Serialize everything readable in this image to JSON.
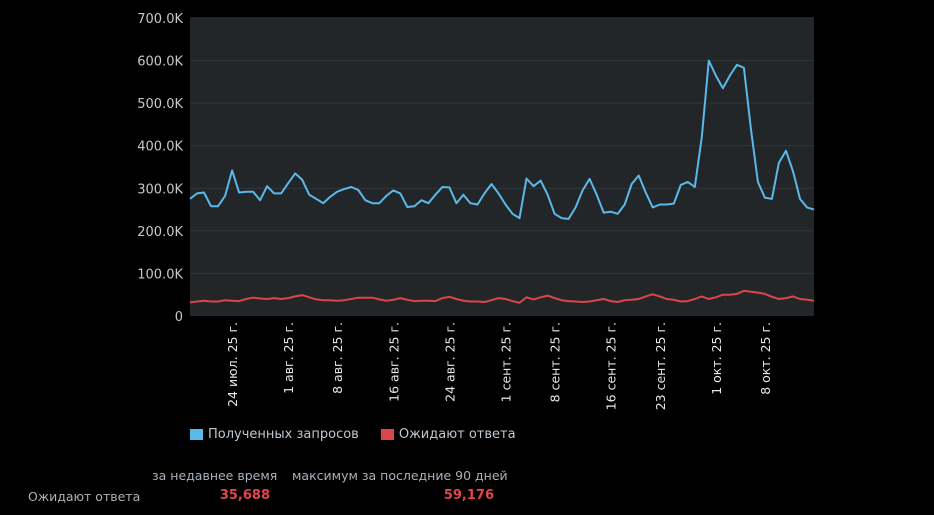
{
  "chart_data": {
    "type": "line",
    "title": "",
    "xlabel": "",
    "ylabel": "",
    "ylim": [
      0,
      700000
    ],
    "yticks": [
      "0",
      "100.0K",
      "200.0K",
      "300.0K",
      "400.0K",
      "500.0K",
      "600.0K",
      "700.0K"
    ],
    "ytick_values": [
      0,
      100000,
      200000,
      300000,
      400000,
      500000,
      600000,
      700000
    ],
    "grid": true,
    "legend_placement": "bottom-left",
    "background": "#222629",
    "x": [
      "2025-07-18",
      "2025-07-19",
      "2025-07-20",
      "2025-07-21",
      "2025-07-22",
      "2025-07-23",
      "2025-07-24",
      "2025-07-25",
      "2025-07-26",
      "2025-07-27",
      "2025-07-28",
      "2025-07-29",
      "2025-07-30",
      "2025-07-31",
      "2025-08-01",
      "2025-08-02",
      "2025-08-03",
      "2025-08-04",
      "2025-08-05",
      "2025-08-06",
      "2025-08-07",
      "2025-08-08",
      "2025-08-09",
      "2025-08-10",
      "2025-08-11",
      "2025-08-12",
      "2025-08-13",
      "2025-08-14",
      "2025-08-15",
      "2025-08-16",
      "2025-08-17",
      "2025-08-18",
      "2025-08-19",
      "2025-08-20",
      "2025-08-21",
      "2025-08-22",
      "2025-08-23",
      "2025-08-24",
      "2025-08-25",
      "2025-08-26",
      "2025-08-27",
      "2025-08-28",
      "2025-08-29",
      "2025-08-30",
      "2025-08-31",
      "2025-09-01",
      "2025-09-02",
      "2025-09-03",
      "2025-09-04",
      "2025-09-05",
      "2025-09-06",
      "2025-09-07",
      "2025-09-08",
      "2025-09-09",
      "2025-09-10",
      "2025-09-11",
      "2025-09-12",
      "2025-09-13",
      "2025-09-14",
      "2025-09-15",
      "2025-09-16",
      "2025-09-17",
      "2025-09-18",
      "2025-09-19",
      "2025-09-20",
      "2025-09-21",
      "2025-09-22",
      "2025-09-23",
      "2025-09-24",
      "2025-09-25",
      "2025-09-26",
      "2025-09-27",
      "2025-09-28",
      "2025-09-29",
      "2025-09-30",
      "2025-10-01",
      "2025-10-02",
      "2025-10-03",
      "2025-10-04",
      "2025-10-05",
      "2025-10-06",
      "2025-10-07",
      "2025-10-08",
      "2025-10-09",
      "2025-10-10",
      "2025-10-11",
      "2025-10-12",
      "2025-10-13",
      "2025-10-14",
      "2025-10-15"
    ],
    "xticks": [
      {
        "label": "24 июл. 25 г.",
        "date": "2025-07-24"
      },
      {
        "label": "1 авг. 25 г.",
        "date": "2025-08-01"
      },
      {
        "label": "8 авг. 25 г.",
        "date": "2025-08-08"
      },
      {
        "label": "16 авг. 25 г.",
        "date": "2025-08-16"
      },
      {
        "label": "24 авг. 25 г.",
        "date": "2025-08-24"
      },
      {
        "label": "1 сент. 25 г.",
        "date": "2025-09-01"
      },
      {
        "label": "8 сент. 25 г.",
        "date": "2025-09-08"
      },
      {
        "label": "16 сент. 25 г.",
        "date": "2025-09-16"
      },
      {
        "label": "23 сент. 25 г.",
        "date": "2025-09-23"
      },
      {
        "label": "1 окт. 25 г.",
        "date": "2025-10-01"
      },
      {
        "label": "8 окт. 25 г.",
        "date": "2025-10-08"
      }
    ],
    "series": [
      {
        "name": "Полученных запросов",
        "color": "#5bb8ea",
        "values": [
          275000,
          288000,
          290000,
          258000,
          258000,
          282000,
          342000,
          290000,
          292000,
          292000,
          272000,
          305000,
          288000,
          288000,
          312000,
          335000,
          320000,
          285000,
          275000,
          265000,
          280000,
          292000,
          298000,
          303000,
          296000,
          272000,
          265000,
          265000,
          282000,
          295000,
          288000,
          256000,
          258000,
          272000,
          265000,
          285000,
          303000,
          302000,
          265000,
          285000,
          265000,
          262000,
          288000,
          310000,
          288000,
          262000,
          240000,
          230000,
          323000,
          305000,
          318000,
          285000,
          240000,
          230000,
          228000,
          255000,
          295000,
          322000,
          285000,
          243000,
          245000,
          240000,
          262000,
          310000,
          330000,
          290000,
          255000,
          262000,
          262000,
          264000,
          308000,
          315000,
          303000,
          420000,
          600000,
          565000,
          535000,
          565000,
          590000,
          583000,
          440000,
          315000,
          278000,
          275000,
          360000,
          388000,
          340000,
          275000,
          255000,
          250000
        ]
      },
      {
        "name": "Ожидают ответа",
        "color": "#d9464b",
        "values": [
          32000,
          34000,
          36000,
          34000,
          34000,
          37000,
          36000,
          35000,
          40000,
          43000,
          41000,
          40000,
          42000,
          40000,
          42000,
          46000,
          49000,
          44000,
          39000,
          37000,
          37000,
          36000,
          37000,
          40000,
          43000,
          43000,
          43000,
          39000,
          36000,
          38000,
          42000,
          38000,
          35000,
          36000,
          36000,
          35000,
          42000,
          45000,
          40000,
          36000,
          34000,
          34000,
          33000,
          37000,
          42000,
          40000,
          35000,
          31000,
          44000,
          39000,
          44000,
          48000,
          42000,
          37000,
          35000,
          34000,
          33000,
          34000,
          37000,
          40000,
          35000,
          33000,
          37000,
          38000,
          40000,
          46000,
          51000,
          46000,
          40000,
          38000,
          34000,
          35000,
          40000,
          46000,
          40000,
          44000,
          50000,
          50000,
          52000,
          59176,
          57000,
          55000,
          52000,
          45000,
          40000,
          42000,
          46000,
          40000,
          38000,
          35688
        ]
      }
    ]
  },
  "stats": {
    "col_recent": "за недавнее время",
    "col_max": "максимум за последние 90 дней",
    "row_label": "Ожидают ответа",
    "recent_value": "35,688",
    "max_value": "59,176",
    "value_color": "#e0474c"
  }
}
